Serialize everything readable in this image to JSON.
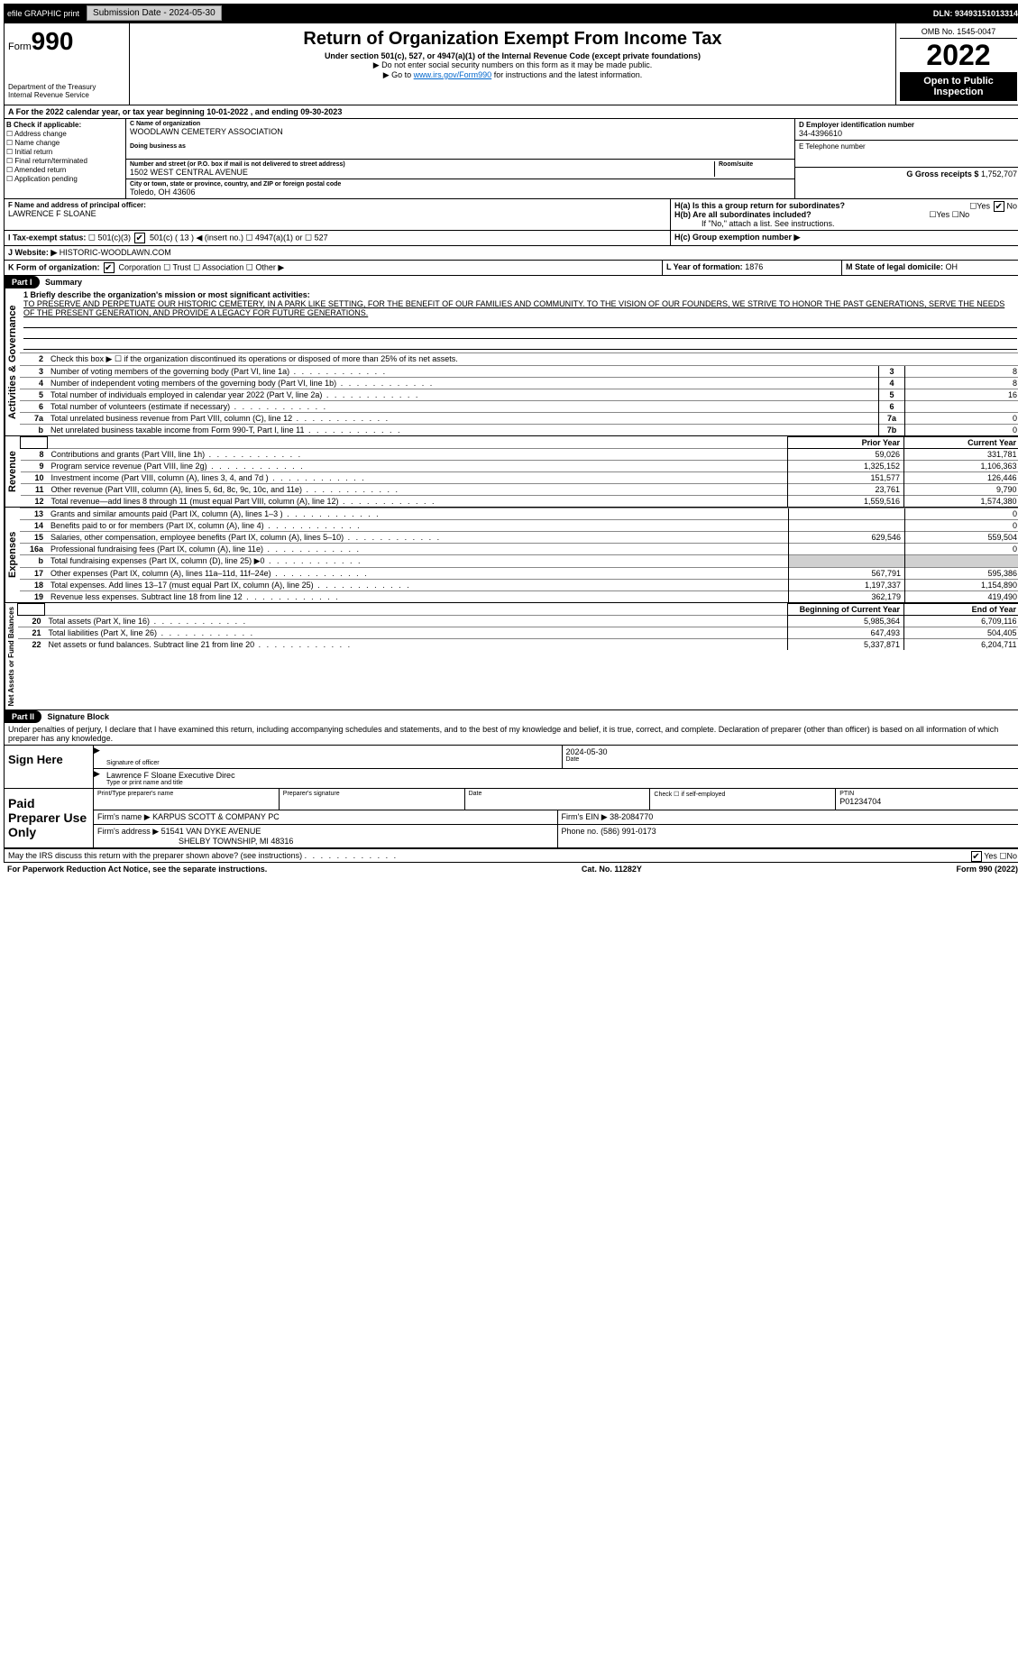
{
  "topbar": {
    "efile": "efile GRAPHIC print",
    "submission": "Submission Date - 2024-05-30",
    "dln": "DLN: 93493151013314"
  },
  "header": {
    "form": "Form",
    "num": "990",
    "dept": "Department of the Treasury",
    "irs": "Internal Revenue Service",
    "title": "Return of Organization Exempt From Income Tax",
    "sub": "Under section 501(c), 527, or 4947(a)(1) of the Internal Revenue Code (except private foundations)",
    "note1": "▶ Do not enter social security numbers on this form as it may be made public.",
    "note2_pre": "▶ Go to ",
    "note2_link": "www.irs.gov/Form990",
    "note2_post": " for instructions and the latest information.",
    "omb": "OMB No. 1545-0047",
    "year": "2022",
    "open": "Open to Public Inspection"
  },
  "period": {
    "text": "A For the 2022 calendar year, or tax year beginning 10-01-2022    , and ending 09-30-2023"
  },
  "blockB": {
    "title": "B Check if applicable:",
    "addr": "Address change",
    "name": "Name change",
    "init": "Initial return",
    "final": "Final return/terminated",
    "amend": "Amended return",
    "app": "Application pending"
  },
  "blockC": {
    "name_lbl": "C Name of organization",
    "name": "WOODLAWN CEMETERY ASSOCIATION",
    "dba_lbl": "Doing business as",
    "street_lbl": "Number and street (or P.O. box if mail is not delivered to street address)",
    "street": "1502 WEST CENTRAL AVENUE",
    "room_lbl": "Room/suite",
    "city_lbl": "City or town, state or province, country, and ZIP or foreign postal code",
    "city": "Toledo, OH  43606"
  },
  "blockD": {
    "lbl": "D Employer identification number",
    "val": "34-4396610"
  },
  "blockE": {
    "lbl": "E Telephone number"
  },
  "blockG": {
    "lbl": "G Gross receipts $",
    "val": "1,752,707"
  },
  "blockF": {
    "lbl": "F  Name and address of principal officer:",
    "val": "LAWRENCE F SLOANE"
  },
  "blockH": {
    "a": "H(a)  Is this a group return for subordinates?",
    "b": "H(b)  Are all subordinates included?",
    "bnote": "If \"No,\" attach a list. See instructions.",
    "c": "H(c)  Group exemption number ▶",
    "yes": "Yes",
    "no": "No"
  },
  "blockI": {
    "lbl": "I   Tax-exempt status:",
    "c3": "501(c)(3)",
    "c": "501(c) ( 13 ) ◀ (insert no.)",
    "a1": "4947(a)(1) or",
    "s527": "527"
  },
  "blockJ": {
    "lbl": "J   Website: ▶",
    "val": "HISTORIC-WOODLAWN.COM"
  },
  "blockK": {
    "lbl": "K Form of organization:",
    "corp": "Corporation",
    "trust": "Trust",
    "assoc": "Association",
    "other": "Other ▶"
  },
  "blockL": {
    "lbl": "L Year of formation:",
    "val": "1876"
  },
  "blockM": {
    "lbl": "M State of legal domicile:",
    "val": "OH"
  },
  "part1": {
    "hdr": "Part I",
    "title": "Summary",
    "side_gov": "Activities & Governance",
    "side_rev": "Revenue",
    "side_exp": "Expenses",
    "side_net": "Net Assets or Fund Balances",
    "l1": "1 Briefly describe the organization's mission or most significant activities:",
    "mission": "TO PRESERVE AND PERPETUATE OUR HISTORIC CEMETERY, IN A PARK LIKE SETTING, FOR THE BENEFIT OF OUR FAMILIES AND COMMUNITY. TO THE VISION OF OUR FOUNDERS, WE STRIVE TO HONOR THE PAST GENERATIONS, SERVE THE NEEDS OF THE PRESENT GENERATION, AND PROVIDE A LEGACY FOR FUTURE GENERATIONS.",
    "l2": "Check this box ▶ ☐  if the organization discontinued its operations or disposed of more than 25% of its net assets.",
    "rows_gov": [
      {
        "n": "3",
        "t": "Number of voting members of the governing body (Part VI, line 1a)",
        "b": "3",
        "v": "8"
      },
      {
        "n": "4",
        "t": "Number of independent voting members of the governing body (Part VI, line 1b)",
        "b": "4",
        "v": "8"
      },
      {
        "n": "5",
        "t": "Total number of individuals employed in calendar year 2022 (Part V, line 2a)",
        "b": "5",
        "v": "16"
      },
      {
        "n": "6",
        "t": "Total number of volunteers (estimate if necessary)",
        "b": "6",
        "v": ""
      },
      {
        "n": "7a",
        "t": "Total unrelated business revenue from Part VIII, column (C), line 12",
        "b": "7a",
        "v": "0"
      },
      {
        "n": "b",
        "t": "Net unrelated business taxable income from Form 990-T, Part I, line 11",
        "b": "7b",
        "v": "0"
      }
    ],
    "prior": "Prior Year",
    "current": "Current Year",
    "rows_rev": [
      {
        "n": "8",
        "t": "Contributions and grants (Part VIII, line 1h)",
        "p": "59,026",
        "c": "331,781"
      },
      {
        "n": "9",
        "t": "Program service revenue (Part VIII, line 2g)",
        "p": "1,325,152",
        "c": "1,106,363"
      },
      {
        "n": "10",
        "t": "Investment income (Part VIII, column (A), lines 3, 4, and 7d )",
        "p": "151,577",
        "c": "126,446"
      },
      {
        "n": "11",
        "t": "Other revenue (Part VIII, column (A), lines 5, 6d, 8c, 9c, 10c, and 11e)",
        "p": "23,761",
        "c": "9,790"
      },
      {
        "n": "12",
        "t": "Total revenue—add lines 8 through 11 (must equal Part VIII, column (A), line 12)",
        "p": "1,559,516",
        "c": "1,574,380"
      }
    ],
    "rows_exp": [
      {
        "n": "13",
        "t": "Grants and similar amounts paid (Part IX, column (A), lines 1–3 )",
        "p": "",
        "c": "0"
      },
      {
        "n": "14",
        "t": "Benefits paid to or for members (Part IX, column (A), line 4)",
        "p": "",
        "c": "0"
      },
      {
        "n": "15",
        "t": "Salaries, other compensation, employee benefits (Part IX, column (A), lines 5–10)",
        "p": "629,546",
        "c": "559,504"
      },
      {
        "n": "16a",
        "t": "Professional fundraising fees (Part IX, column (A), line 11e)",
        "p": "",
        "c": "0"
      },
      {
        "n": "b",
        "t": "Total fundraising expenses (Part IX, column (D), line 25) ▶0",
        "p": "—shade—",
        "c": "—shade—"
      },
      {
        "n": "17",
        "t": "Other expenses (Part IX, column (A), lines 11a–11d, 11f–24e)",
        "p": "567,791",
        "c": "595,386"
      },
      {
        "n": "18",
        "t": "Total expenses. Add lines 13–17 (must equal Part IX, column (A), line 25)",
        "p": "1,197,337",
        "c": "1,154,890"
      },
      {
        "n": "19",
        "t": "Revenue less expenses. Subtract line 18 from line 12",
        "p": "362,179",
        "c": "419,490"
      }
    ],
    "begin": "Beginning of Current Year",
    "end": "End of Year",
    "rows_net": [
      {
        "n": "20",
        "t": "Total assets (Part X, line 16)",
        "p": "5,985,364",
        "c": "6,709,116"
      },
      {
        "n": "21",
        "t": "Total liabilities (Part X, line 26)",
        "p": "647,493",
        "c": "504,405"
      },
      {
        "n": "22",
        "t": "Net assets or fund balances. Subtract line 21 from line 20",
        "p": "5,337,871",
        "c": "6,204,711"
      }
    ]
  },
  "part2": {
    "hdr": "Part II",
    "title": "Signature Block",
    "decl": "Under penalties of perjury, I declare that I have examined this return, including accompanying schedules and statements, and to the best of my knowledge and belief, it is true, correct, and complete. Declaration of preparer (other than officer) is based on all information of which preparer has any knowledge.",
    "sign": "Sign Here",
    "sig_officer": "Signature of officer",
    "date": "Date",
    "date_val": "2024-05-30",
    "name_title": "Lawrence F Sloane Executive Direc",
    "type_name": "Type or print name and title",
    "paid": "Paid Preparer Use Only",
    "prep_name_lbl": "Print/Type preparer's name",
    "prep_sig_lbl": "Preparer's signature",
    "date_lbl": "Date",
    "check_self": "Check ☐ if self-employed",
    "ptin_lbl": "PTIN",
    "ptin": "P01234704",
    "firm_name_lbl": "Firm's name    ▶",
    "firm_name": "KARPUS SCOTT & COMPANY PC",
    "firm_ein_lbl": "Firm's EIN ▶",
    "firm_ein": "38-2084770",
    "firm_addr_lbl": "Firm's address ▶",
    "firm_addr1": "51541 VAN DYKE AVENUE",
    "firm_addr2": "SHELBY TOWNSHIP, MI  48316",
    "phone_lbl": "Phone no.",
    "phone": "(586) 991-0173",
    "may_irs": "May the IRS discuss this return with the preparer shown above? (see instructions)",
    "yes": "Yes",
    "no": "No"
  },
  "footer": {
    "pra": "For Paperwork Reduction Act Notice, see the separate instructions.",
    "cat": "Cat. No. 11282Y",
    "form": "Form 990 (2022)"
  }
}
